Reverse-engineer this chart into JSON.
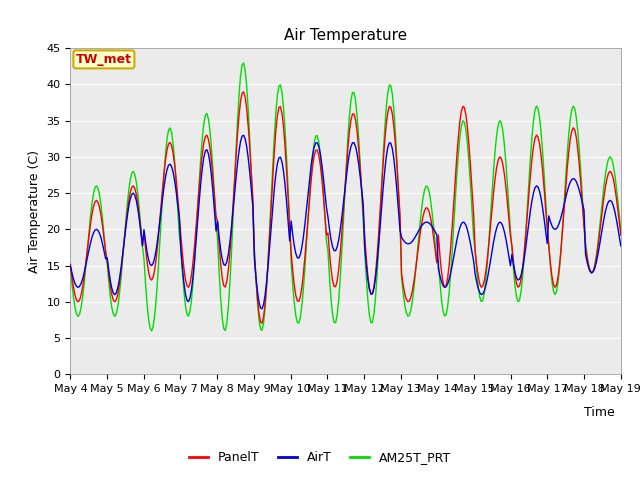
{
  "title": "Air Temperature",
  "ylabel": "Air Temperature (C)",
  "xlabel": "Time",
  "annotation": "TW_met",
  "ylim": [
    0,
    45
  ],
  "yticks": [
    0,
    5,
    10,
    15,
    20,
    25,
    30,
    35,
    40,
    45
  ],
  "xticklabels": [
    "May 4",
    "May 5",
    "May 6",
    "May 7",
    "May 8",
    "May 9",
    "May 10",
    "May 11",
    "May 12",
    "May 13",
    "May 14",
    "May 15",
    "May 16",
    "May 17",
    "May 18",
    "May 19"
  ],
  "legend_labels": [
    "PanelT",
    "AirT",
    "AM25T_PRT"
  ],
  "legend_colors": [
    "#ff0000",
    "#0000dd",
    "#00dd00"
  ],
  "bg_color": "#ebebeb",
  "line_width": 1.0,
  "title_fontsize": 11,
  "label_fontsize": 9,
  "tick_fontsize": 8,
  "legend_fontsize": 9
}
